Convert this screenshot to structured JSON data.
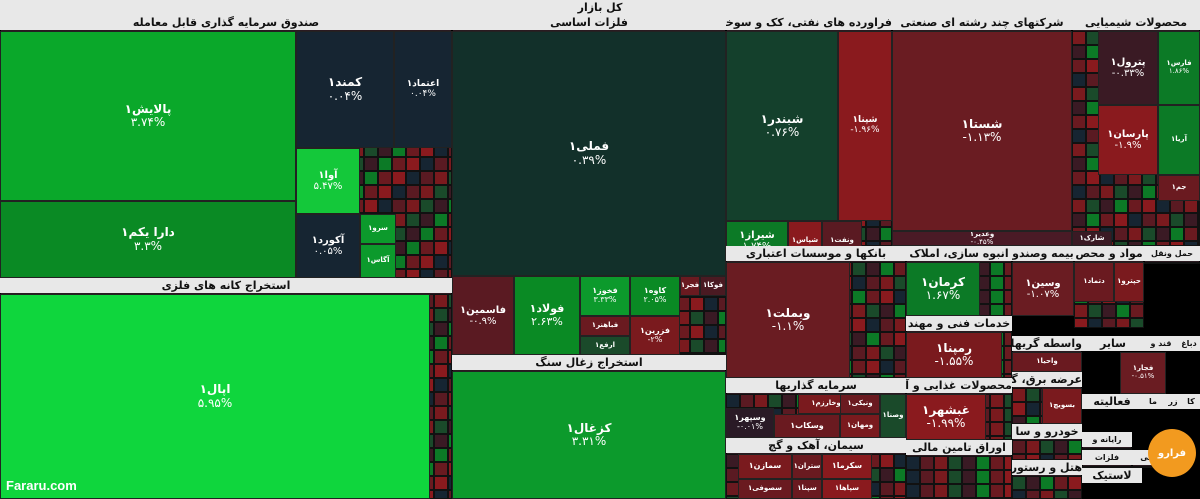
{
  "chart_data": {
    "type": "heatmap",
    "title": "کل بازار",
    "sectors": [
      {
        "name": "صندوق سرمایه گذاری قابل معامله",
        "tiles": [
          {
            "name": "پالایش۱",
            "change": "۳.۷۴%",
            "color": "#0aa82a"
          },
          {
            "name": "دارا یکم۱",
            "change": "۳.۳%",
            "color": "#0a8a24"
          },
          {
            "name": "کمند۱",
            "change": "۰.۰۴%",
            "color": "#162532"
          },
          {
            "name": "اعتماد۱",
            "change": "۰.۰۴%",
            "color": "#162532"
          },
          {
            "name": "آوا۱",
            "change": "۵.۴۷%",
            "color": "#14c83a"
          },
          {
            "name": "آکورد۱",
            "change": "۰.۰۵%",
            "color": "#162532"
          },
          {
            "name": "سرو۱",
            "change": "",
            "color": "#0c9a2c"
          },
          {
            "name": "آگاس۱",
            "change": "",
            "color": "#0c9a2c"
          }
        ]
      },
      {
        "name": "استخراج کانه های فلزی",
        "tiles": [
          {
            "name": "اپال۱",
            "change": "۵.۹۵%",
            "color": "#0fd63d"
          }
        ]
      },
      {
        "name": "فلزات اساسی",
        "tiles": [
          {
            "name": "فملی۱",
            "change": "۰.۳۹%",
            "color": "#12302a"
          },
          {
            "name": "فاسمین۱",
            "change": "-۰.۹%",
            "color": "#5a1a22"
          },
          {
            "name": "فولاد۱",
            "change": "۲.۶۳%",
            "color": "#0a8a24"
          },
          {
            "name": "فخوز۱",
            "change": "۳.۳۳%",
            "color": "#0c9a2c"
          },
          {
            "name": "کاوه۱",
            "change": "۲.۰۵%",
            "color": "#0a8a24"
          },
          {
            "name": "فزرین۱",
            "change": "-۲%",
            "color": "#7a1a1e"
          },
          {
            "name": "فباهنر۱",
            "change": "",
            "color": "#6a1a20"
          },
          {
            "name": "فجر۱",
            "change": "",
            "color": "#6a1a20"
          },
          {
            "name": "فوکا۱",
            "change": "",
            "color": "#4a1a22"
          },
          {
            "name": "ارفع۱",
            "change": "",
            "color": "#1a4a2a"
          }
        ]
      },
      {
        "name": "استخراج زغال سنگ",
        "tiles": [
          {
            "name": "کزغال۱",
            "change": "۳.۳۱%",
            "color": "#0c9a2c"
          }
        ]
      },
      {
        "name": "فراورده های نفتی، کک و سوخت",
        "tiles": [
          {
            "name": "شبندر۱",
            "change": "۰.۷۶%",
            "color": "#14402c"
          },
          {
            "name": "شپنا۱",
            "change": "-۱.۹۶%",
            "color": "#8a1a1e"
          },
          {
            "name": "شیراز۱",
            "change": "۱.۷۴%",
            "color": "#0c7a26"
          },
          {
            "name": "شپاس۱",
            "change": "",
            "color": "#8a1a1e"
          },
          {
            "name": "ونفت۱",
            "change": "",
            "color": "#5a1a22"
          }
        ]
      },
      {
        "name": "شرکتهای چند رشته ای صنعتی",
        "tiles": [
          {
            "name": "شستا۱",
            "change": "-۱.۱۳%",
            "color": "#6a1c22"
          },
          {
            "name": "وغدیر۱",
            "change": "-۰.۴۵%",
            "color": "#4a1a26"
          }
        ]
      },
      {
        "name": "محصولات شیمیایی",
        "tiles": [
          {
            "name": "پترول۱",
            "change": "-۰.۳۳%",
            "color": "#3a1a24"
          },
          {
            "name": "فارس۱",
            "change": "۱.۸۶%",
            "color": "#0c7a26"
          },
          {
            "name": "پارسان۱",
            "change": "-۱.۹%",
            "color": "#8a1a1e"
          },
          {
            "name": "آریا۱",
            "change": "",
            "color": "#0c7a26"
          },
          {
            "name": "جم۱",
            "change": "",
            "color": "#6a1a20"
          },
          {
            "name": "شارک۱",
            "change": "",
            "color": "#3a1a24"
          }
        ]
      },
      {
        "name": "بانکها و موسسات اعتباری",
        "tiles": [
          {
            "name": "وبملت۱",
            "change": "-۱.۱%",
            "color": "#6a1c22"
          }
        ]
      },
      {
        "name": "انبوه سازی، املاک",
        "tiles": [
          {
            "name": "کرمان۱",
            "change": "۱.۶۷%",
            "color": "#0c7a26"
          }
        ]
      },
      {
        "name": "خدمات فنی و مهند",
        "tiles": [
          {
            "name": "رمپنا۱",
            "change": "-۱.۵۵%",
            "color": "#7a1a1e"
          }
        ]
      },
      {
        "name": "بیمه وصندو",
        "tiles": [
          {
            "name": "وسین۱",
            "change": "-۱.۰۷%",
            "color": "#6a1c22"
          }
        ]
      },
      {
        "name": "مواد و محص",
        "tiles": [
          {
            "name": "دتماد۱",
            "change": "",
            "color": "#6a1a20"
          },
          {
            "name": "حپترو۱",
            "change": "",
            "color": "#7a1a1e"
          }
        ]
      },
      {
        "name": "حمل ونقل",
        "tiles": []
      },
      {
        "name": "سرمایه گذاریها",
        "tiles": [
          {
            "name": "وخارزم۱",
            "change": "",
            "color": "#7a1a1e"
          },
          {
            "name": "ومهان۱",
            "change": "",
            "color": "#7a1a1e"
          },
          {
            "name": "وسپهر۱",
            "change": "-۰.۰۱%",
            "color": "#2a1a26"
          },
          {
            "name": "وسکاب۱",
            "change": "",
            "color": "#6a1a20"
          },
          {
            "name": "ونیکی۱",
            "change": "",
            "color": "#6a1a20"
          },
          {
            "name": "وصنا۱",
            "change": "",
            "color": "#1a4a2a"
          }
        ]
      },
      {
        "name": "محصولات غذایی و آ",
        "tiles": [
          {
            "name": "غبشهر۱",
            "change": "-۱.۹۹%",
            "color": "#8a1a1e"
          }
        ]
      },
      {
        "name": "سیمان، آهک و گچ",
        "tiles": [
          {
            "name": "سمازن۱",
            "change": "",
            "color": "#7a1a1e"
          },
          {
            "name": "سکرما۱",
            "change": "",
            "color": "#8a1a1e"
          },
          {
            "name": "سپاها۱",
            "change": "",
            "color": "#8a1a1e"
          },
          {
            "name": "ستران۱",
            "change": "",
            "color": "#6a1a20"
          },
          {
            "name": "سصوفی۱",
            "change": "",
            "color": "#6a1a20"
          },
          {
            "name": "سپنا۱",
            "change": "",
            "color": "#6a1a20"
          }
        ]
      },
      {
        "name": "اوراق تامین مالی",
        "tiles": []
      },
      {
        "name": "واسطه گریهای",
        "tiles": [
          {
            "name": "واحیا۱",
            "change": "",
            "color": "#6a1a20"
          }
        ]
      },
      {
        "name": "عرضه برق، گا",
        "tiles": [
          {
            "name": "بسویچ۱",
            "change": "",
            "color": "#7a1a1e"
          }
        ]
      },
      {
        "name": "خودرو و سا",
        "tiles": []
      },
      {
        "name": "هتل و رستوران",
        "tiles": []
      },
      {
        "name": "قند و",
        "tiles": []
      },
      {
        "name": "سایر",
        "tiles": []
      },
      {
        "name": "دباغ",
        "tiles": []
      },
      {
        "name": "رایانه و",
        "tiles": []
      },
      {
        "name": "فعالیته",
        "tiles": []
      },
      {
        "name": "فجار۱",
        "tiles": [
          {
            "name": "فجار۱",
            "change": "-۰.۵۱%",
            "color": "#6a1c22"
          }
        ]
      },
      {
        "name": "کاشی",
        "tiles": []
      },
      {
        "name": "فلزات",
        "tiles": []
      },
      {
        "name": "لاستیک",
        "tiles": []
      },
      {
        "name": "ما",
        "tiles": []
      },
      {
        "name": "زر",
        "tiles": []
      },
      {
        "name": "کا",
        "tiles": []
      }
    ],
    "legend": "none",
    "grid": false
  },
  "watermark": "Fararu.com",
  "logo_text": "فرارو",
  "colors": {
    "header_bg": "#e8e8e8",
    "header_text": "#111111",
    "background": "#000000"
  }
}
